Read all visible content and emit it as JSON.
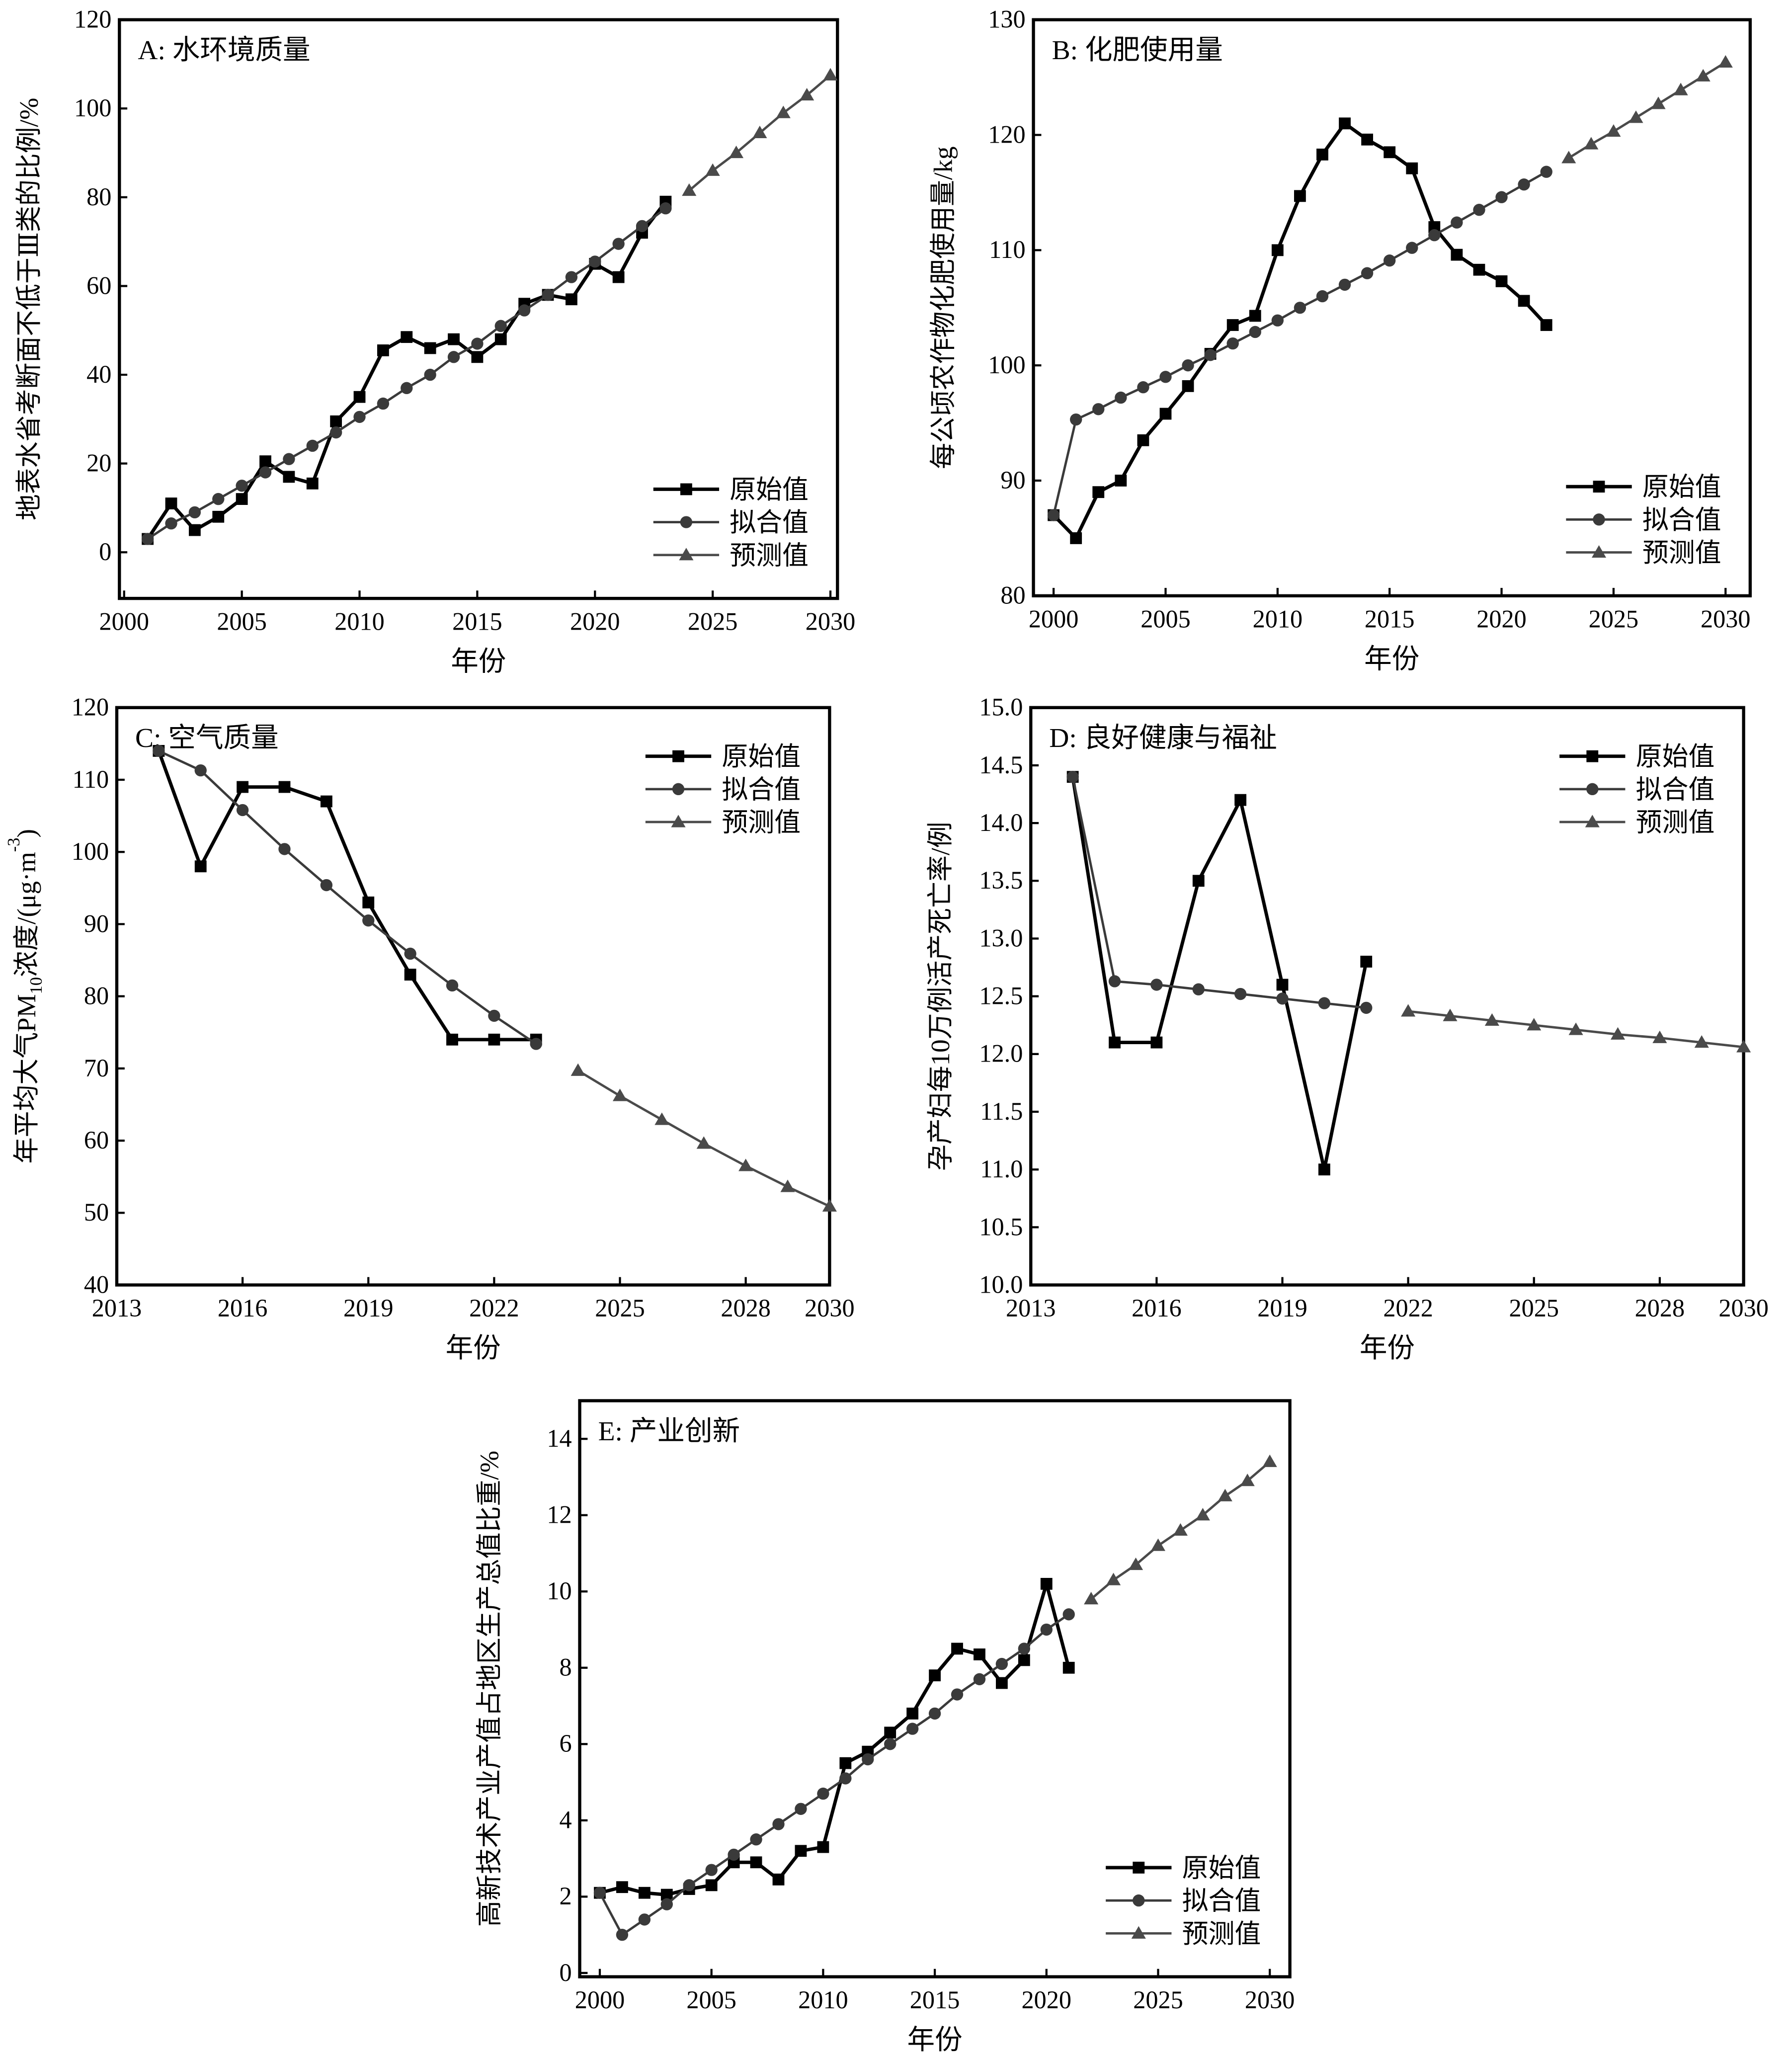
{
  "legend_labels": {
    "original": "原始值",
    "fitted": "拟合值",
    "predicted": "预测值"
  },
  "colors": {
    "original": "#000000",
    "fitted": "#3a3a3a",
    "predicted": "#4a4a4a"
  },
  "chart_data": [
    {
      "id": "A",
      "type": "line",
      "title": "A: 水环境质量",
      "xlabel": "年份",
      "ylabel": "地表水省考断面不低于Ⅲ类的比例/%",
      "xlim": [
        1999.8,
        2030.3
      ],
      "ylim": [
        -10.4,
        120
      ],
      "xticks": [
        2000,
        2005,
        2010,
        2015,
        2020,
        2025,
        2030
      ],
      "yticks": [
        0,
        20,
        40,
        60,
        80,
        100,
        120
      ],
      "ytick_decimals": 0,
      "legend": "bottom-right",
      "grid": false,
      "series": [
        {
          "key": "original",
          "name": "原始值",
          "x": [
            2001,
            2002,
            2003,
            2004,
            2005,
            2006,
            2007,
            2008,
            2009,
            2010,
            2011,
            2012,
            2013,
            2014,
            2015,
            2016,
            2017,
            2018,
            2019,
            2020,
            2021,
            2022,
            2023
          ],
          "y": [
            3,
            11,
            5,
            8,
            12,
            20.5,
            17,
            15.5,
            29.5,
            35,
            45.5,
            48.5,
            46,
            48,
            44,
            48,
            56,
            58,
            57,
            65,
            62,
            72,
            79
          ]
        },
        {
          "key": "fitted",
          "name": "拟合值",
          "x": [
            2001,
            2002,
            2003,
            2004,
            2005,
            2006,
            2007,
            2008,
            2009,
            2010,
            2011,
            2012,
            2013,
            2014,
            2015,
            2016,
            2017,
            2018,
            2019,
            2020,
            2021,
            2022,
            2023
          ],
          "y": [
            3,
            6.5,
            9,
            12,
            15,
            18,
            21,
            24,
            27,
            30.5,
            33.5,
            37,
            40,
            44,
            47,
            51,
            54.5,
            58,
            62,
            65.5,
            69.5,
            73.5,
            77.5
          ]
        },
        {
          "key": "predicted",
          "name": "预测值",
          "x": [
            2024,
            2025,
            2026,
            2027,
            2028,
            2029,
            2030
          ],
          "y": [
            81.5,
            86,
            90,
            94.5,
            99,
            103,
            107.5
          ]
        }
      ]
    },
    {
      "id": "B",
      "type": "line",
      "title": "B: 化肥使用量",
      "xlabel": "年份",
      "ylabel": "每公顷农作物化肥使用量/kg",
      "xlim": [
        1999.1,
        2031.1
      ],
      "ylim": [
        80,
        130
      ],
      "xticks": [
        2000,
        2005,
        2010,
        2015,
        2020,
        2025,
        2030
      ],
      "yticks": [
        80,
        90,
        100,
        110,
        120,
        130
      ],
      "ytick_decimals": 0,
      "legend": "bottom-right",
      "grid": false,
      "series": [
        {
          "key": "original",
          "name": "原始值",
          "x": [
            2000,
            2001,
            2002,
            2003,
            2004,
            2005,
            2006,
            2007,
            2008,
            2009,
            2010,
            2011,
            2012,
            2013,
            2014,
            2015,
            2016,
            2017,
            2018,
            2019,
            2020,
            2021,
            2022
          ],
          "y": [
            87,
            85,
            89,
            90,
            93.5,
            95.8,
            98.2,
            101,
            103.5,
            104.3,
            110,
            114.7,
            118.3,
            121,
            119.6,
            118.5,
            117.1,
            112,
            109.6,
            108.3,
            107.3,
            105.6,
            103.5
          ]
        },
        {
          "key": "fitted",
          "name": "拟合值",
          "x": [
            2000,
            2001,
            2002,
            2003,
            2004,
            2005,
            2006,
            2007,
            2008,
            2009,
            2010,
            2011,
            2012,
            2013,
            2014,
            2015,
            2016,
            2017,
            2018,
            2019,
            2020,
            2021,
            2022
          ],
          "y": [
            87,
            95.3,
            96.2,
            97.2,
            98.1,
            99,
            100,
            100.9,
            101.9,
            102.9,
            103.9,
            105,
            106,
            107,
            108,
            109.1,
            110.2,
            111.3,
            112.4,
            113.5,
            114.6,
            115.7,
            116.8
          ]
        },
        {
          "key": "predicted",
          "name": "预测值",
          "x": [
            2023,
            2024,
            2025,
            2026,
            2027,
            2028,
            2029,
            2030
          ],
          "y": [
            118,
            119.2,
            120.3,
            121.5,
            122.7,
            123.9,
            125.1,
            126.3
          ]
        }
      ]
    },
    {
      "id": "C",
      "type": "line",
      "title": "C: 空气质量",
      "xlabel": "年份",
      "ylabel_parts": [
        "年平均大气PM",
        "10",
        "浓度/(μg·m",
        "-3",
        ")"
      ],
      "xlim": [
        2013,
        2030
      ],
      "ylim": [
        40,
        120
      ],
      "xticks": [
        2013,
        2016,
        2019,
        2022,
        2025,
        2028,
        2030
      ],
      "yticks": [
        40,
        50,
        60,
        70,
        80,
        90,
        100,
        110,
        120
      ],
      "ytick_decimals": 0,
      "legend": "top-right",
      "grid": false,
      "series": [
        {
          "key": "original",
          "name": "原始值",
          "x": [
            2014,
            2015,
            2016,
            2017,
            2018,
            2019,
            2020,
            2021,
            2022,
            2023
          ],
          "y": [
            114,
            98,
            109,
            109,
            107,
            93,
            83,
            74,
            74,
            74
          ]
        },
        {
          "key": "fitted",
          "name": "拟合值",
          "x": [
            2014,
            2015,
            2016,
            2017,
            2018,
            2019,
            2020,
            2021,
            2022,
            2023
          ],
          "y": [
            114,
            111.3,
            105.8,
            100.4,
            95.4,
            90.5,
            85.9,
            81.5,
            77.3,
            73.4
          ]
        },
        {
          "key": "predicted",
          "name": "预测值",
          "x": [
            2024,
            2025,
            2026,
            2027,
            2028,
            2029,
            2030
          ],
          "y": [
            69.7,
            66.2,
            62.9,
            59.6,
            56.5,
            53.6,
            50.9
          ]
        }
      ]
    },
    {
      "id": "D",
      "type": "line",
      "title": "D: 良好健康与福祉",
      "xlabel": "年份",
      "ylabel": "孕产妇每10万例活产死亡率/例",
      "xlim": [
        2013,
        2030
      ],
      "ylim": [
        10,
        15
      ],
      "xticks": [
        2013,
        2016,
        2019,
        2022,
        2025,
        2028,
        2030
      ],
      "yticks": [
        10,
        10.5,
        11,
        11.5,
        12,
        12.5,
        13,
        13.5,
        14,
        14.5,
        15
      ],
      "ytick_decimals": 1,
      "legend": "top-right",
      "grid": false,
      "series": [
        {
          "key": "original",
          "name": "原始值",
          "x": [
            2014,
            2015,
            2016,
            2017,
            2018,
            2019,
            2020,
            2021
          ],
          "y": [
            14.4,
            12.1,
            12.1,
            13.5,
            14.2,
            12.6,
            11.0,
            12.8
          ]
        },
        {
          "key": "fitted",
          "name": "拟合值",
          "x": [
            2014,
            2015,
            2016,
            2017,
            2018,
            2019,
            2020,
            2021
          ],
          "y": [
            14.4,
            12.63,
            12.6,
            12.56,
            12.52,
            12.48,
            12.44,
            12.4
          ]
        },
        {
          "key": "predicted",
          "name": "预测值",
          "x": [
            2022,
            2023,
            2024,
            2025,
            2026,
            2027,
            2028,
            2029,
            2030
          ],
          "y": [
            12.37,
            12.33,
            12.29,
            12.25,
            12.21,
            12.17,
            12.14,
            12.1,
            12.06
          ]
        }
      ]
    },
    {
      "id": "E",
      "type": "line",
      "title": "E: 产业创新",
      "xlabel": "年份",
      "ylabel": "高新技术产业产值占地区生产总值比重/%",
      "xlim": [
        1999.1,
        2030.9
      ],
      "ylim": [
        -0.1,
        15
      ],
      "xticks": [
        2000,
        2005,
        2010,
        2015,
        2020,
        2025,
        2030
      ],
      "yticks": [
        0,
        2,
        4,
        6,
        8,
        10,
        12,
        14
      ],
      "ytick_decimals": 0,
      "legend": "bottom-right",
      "grid": false,
      "series": [
        {
          "key": "original",
          "name": "原始值",
          "x": [
            2000,
            2001,
            2002,
            2003,
            2004,
            2005,
            2006,
            2007,
            2008,
            2009,
            2010,
            2011,
            2012,
            2013,
            2014,
            2015,
            2016,
            2017,
            2018,
            2019,
            2020,
            2021
          ],
          "y": [
            2.1,
            2.25,
            2.1,
            2.05,
            2.2,
            2.3,
            2.9,
            2.9,
            2.45,
            3.2,
            3.3,
            5.5,
            5.8,
            6.3,
            6.8,
            7.8,
            8.5,
            8.35,
            7.6,
            8.2,
            10.2,
            8.0
          ]
        },
        {
          "key": "fitted",
          "name": "拟合值",
          "x": [
            2000,
            2001,
            2002,
            2003,
            2004,
            2005,
            2006,
            2007,
            2008,
            2009,
            2010,
            2011,
            2012,
            2013,
            2014,
            2015,
            2016,
            2017,
            2018,
            2019,
            2020,
            2021
          ],
          "y": [
            2.1,
            1.0,
            1.4,
            1.8,
            2.3,
            2.7,
            3.1,
            3.5,
            3.9,
            4.3,
            4.7,
            5.1,
            5.6,
            6.0,
            6.4,
            6.8,
            7.3,
            7.7,
            8.1,
            8.5,
            9.0,
            9.4
          ]
        },
        {
          "key": "predicted",
          "name": "预测值",
          "x": [
            2022,
            2023,
            2024,
            2025,
            2026,
            2027,
            2028,
            2029,
            2030
          ],
          "y": [
            9.8,
            10.3,
            10.7,
            11.2,
            11.6,
            12.0,
            12.5,
            12.9,
            13.4
          ]
        }
      ]
    }
  ]
}
